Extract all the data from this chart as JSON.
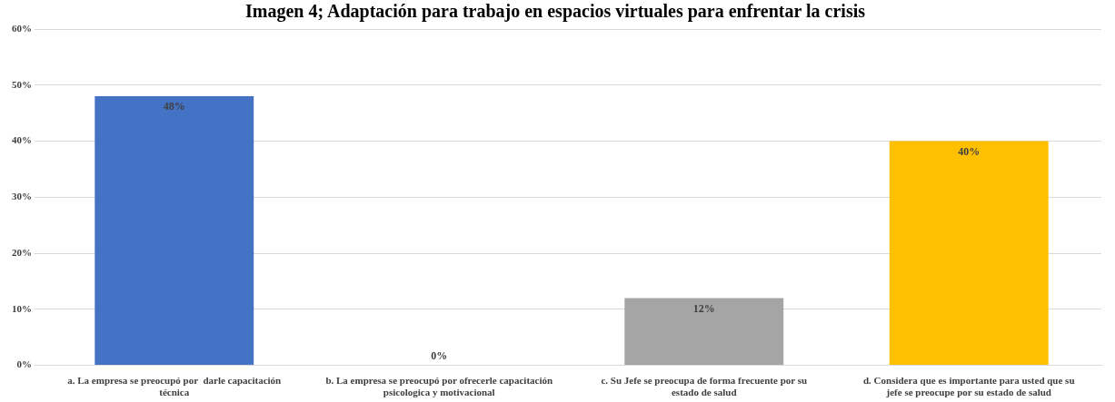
{
  "chart_data": {
    "type": "bar",
    "title": "Imagen 4; Adaptación para trabajo en espacios virtuales para enfrentar la crisis",
    "categories": [
      "a. La empresa se preocupó por  darle capacitación técnica",
      "b. La empresa se preocupó por ofrecerle capacitación psicologica y motivacional",
      "c. Su Jefe se preocupa de forma frecuente por su estado de salud",
      "d. Considera que es importante para usted que su jefe se preocupe por su estado de salud"
    ],
    "values": [
      48,
      0,
      12,
      40
    ],
    "colors": [
      "#4472c4",
      "#5b9bd5",
      "#a5a5a5",
      "#ffc000"
    ],
    "value_labels": [
      "48%",
      "0%",
      "12%",
      "40%"
    ],
    "ylim": [
      0,
      60
    ],
    "yticks": [
      {
        "value": 0,
        "label": "0%"
      },
      {
        "value": 10,
        "label": "10%"
      },
      {
        "value": 20,
        "label": "20%"
      },
      {
        "value": 30,
        "label": "30%"
      },
      {
        "value": 40,
        "label": "40%"
      },
      {
        "value": 50,
        "label": "50%"
      },
      {
        "value": 60,
        "label": "60%"
      }
    ],
    "grid": "y",
    "legend": false
  }
}
